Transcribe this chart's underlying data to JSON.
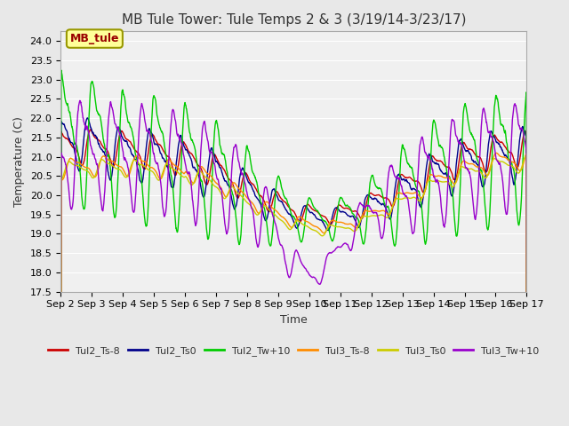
{
  "title": "MB Tule Tower: Tule Temps 2 & 3 (3/19/14-3/23/17)",
  "xlabel": "Time",
  "ylabel": "Temperature (C)",
  "xlim": [
    0,
    15
  ],
  "ylim": [
    17.5,
    24.25
  ],
  "yticks": [
    17.5,
    18.0,
    18.5,
    19.0,
    19.5,
    20.0,
    20.5,
    21.0,
    21.5,
    22.0,
    22.5,
    23.0,
    23.5,
    24.0
  ],
  "xtick_labels": [
    "Sep 2",
    "Sep 3",
    "Sep 4",
    "Sep 5",
    "Sep 6",
    "Sep 7",
    "Sep 8",
    "Sep 9",
    "Sep 10",
    "Sep 11",
    "Sep 12",
    "Sep 13",
    "Sep 14",
    "Sep 15",
    "Sep 16",
    "Sep 17"
  ],
  "legend_label": "MB_tule",
  "series_labels": [
    "Tul2_Ts-8",
    "Tul2_Ts0",
    "Tul2_Tw+10",
    "Tul3_Ts-8",
    "Tul3_Ts0",
    "Tul3_Tw+10"
  ],
  "series_colors": [
    "#cc0000",
    "#00008b",
    "#00cc00",
    "#ff8c00",
    "#cccc00",
    "#9900cc"
  ],
  "bg_color": "#e8e8e8",
  "plot_bg": "#f0f0f0",
  "title_fontsize": 11,
  "axis_fontsize": 9,
  "tick_fontsize": 8,
  "legend_fontsize": 8
}
